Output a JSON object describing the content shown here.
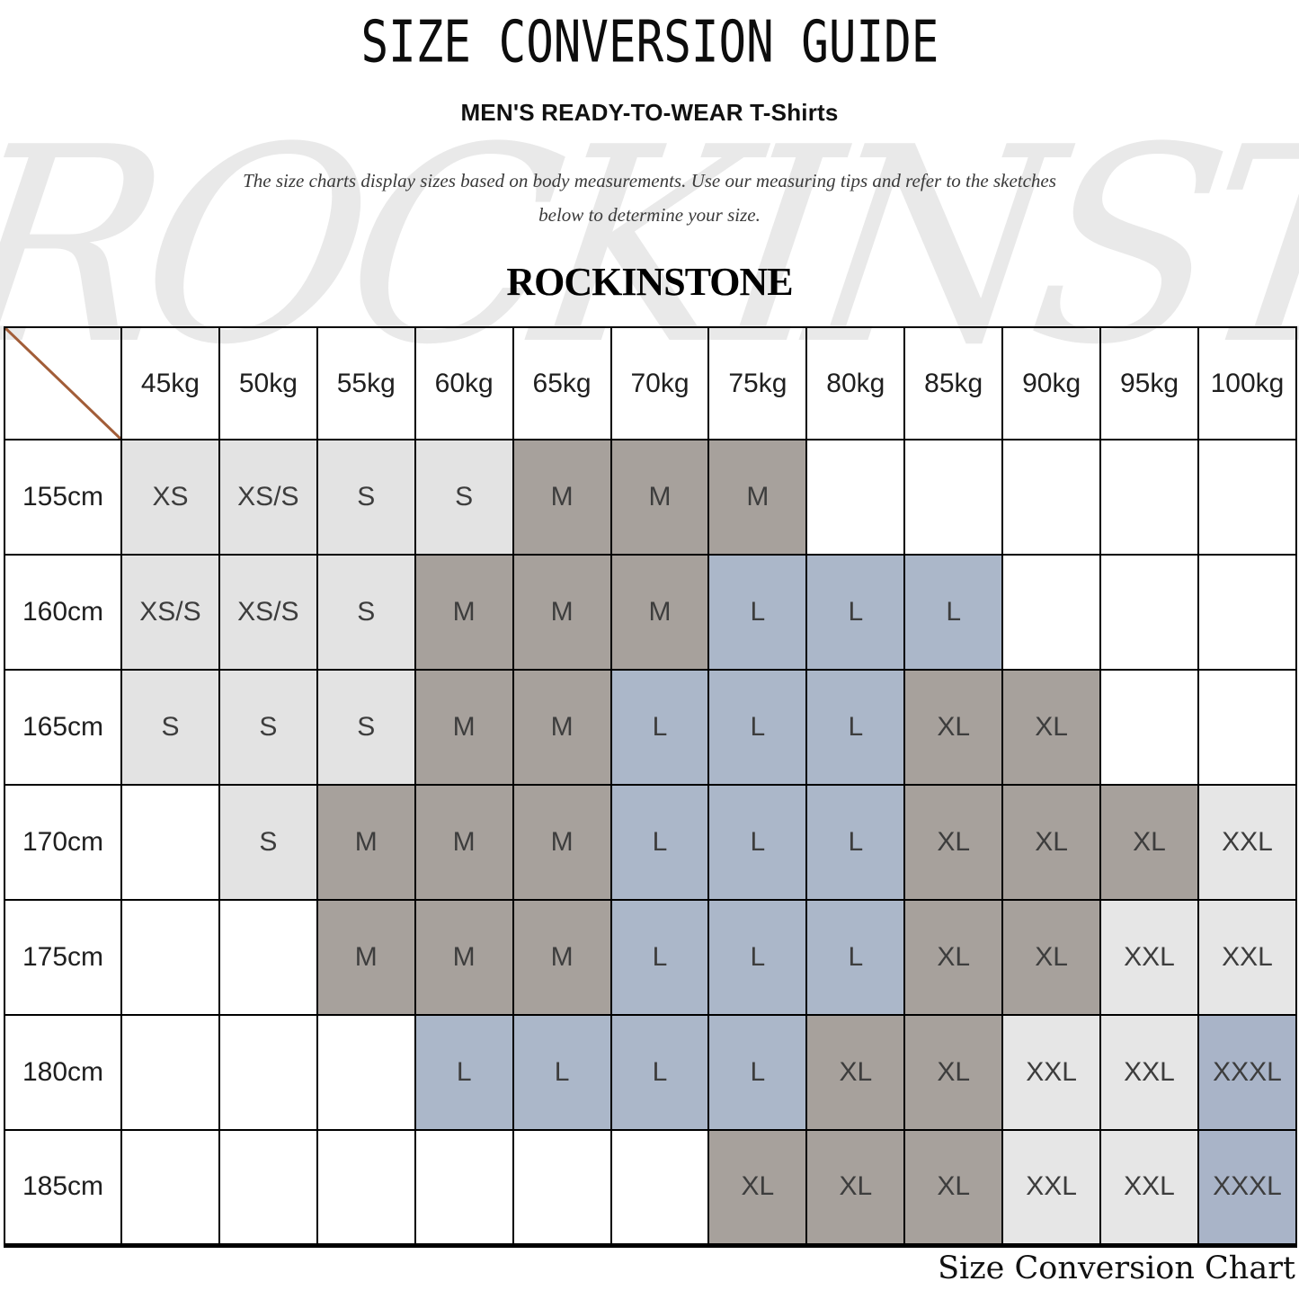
{
  "page": {
    "title": "SIZE CONVERSION GUIDE",
    "subtitle": "MEN'S READY-TO-WEAR T-Shirts",
    "description_line1": "The size charts display sizes based on body measurements. Use our measuring tips and refer to the sketches",
    "description_line2": "below to determine your size.",
    "brand": "ROCKINSTONE",
    "watermark": "ROCKINSTONE",
    "caption": "Size Conversion Chart"
  },
  "chart_data": {
    "type": "table",
    "title": "SIZE CONVERSION GUIDE",
    "weight_headers": [
      "45kg",
      "50kg",
      "55kg",
      "60kg",
      "65kg",
      "70kg",
      "75kg",
      "80kg",
      "85kg",
      "90kg",
      "95kg",
      "100kg"
    ],
    "height_headers": [
      "155cm",
      "160cm",
      "165cm",
      "170cm",
      "175cm",
      "180cm",
      "185cm"
    ],
    "rows": [
      [
        "XS",
        "XS/S",
        "S",
        "S",
        "M",
        "M",
        "M",
        "",
        "",
        "",
        "",
        ""
      ],
      [
        "XS/S",
        "XS/S",
        "S",
        "M",
        "M",
        "M",
        "L",
        "L",
        "L",
        "",
        "",
        ""
      ],
      [
        "S",
        "S",
        "S",
        "M",
        "M",
        "L",
        "L",
        "L",
        "XL",
        "XL",
        "",
        ""
      ],
      [
        "",
        "S",
        "M",
        "M",
        "M",
        "L",
        "L",
        "L",
        "XL",
        "XL",
        "XL",
        "XXL"
      ],
      [
        "",
        "",
        "M",
        "M",
        "M",
        "L",
        "L",
        "L",
        "XL",
        "XL",
        "XXL",
        "XXL"
      ],
      [
        "",
        "",
        "",
        "L",
        "L",
        "L",
        "L",
        "XL",
        "XL",
        "XXL",
        "XXL",
        "XXXL"
      ],
      [
        "",
        "",
        "",
        "",
        "",
        "",
        "XL",
        "XL",
        "XL",
        "XXL",
        "XXL",
        "XXXL"
      ]
    ],
    "cell_colors_by_size": {
      "XS": "#e3e3e3",
      "XS/S": "#e3e3e3",
      "S": "#e3e3e3",
      "M": "#a7a19c",
      "L": "#abb7c9",
      "XL": "#a7a19c",
      "XXL": "#e6e6e6",
      "XXXL": "#a9b4c8"
    },
    "colors": {
      "diagonal_line": "#a25d38",
      "grid": "#000000",
      "empty_cell": "#ffffff"
    }
  }
}
